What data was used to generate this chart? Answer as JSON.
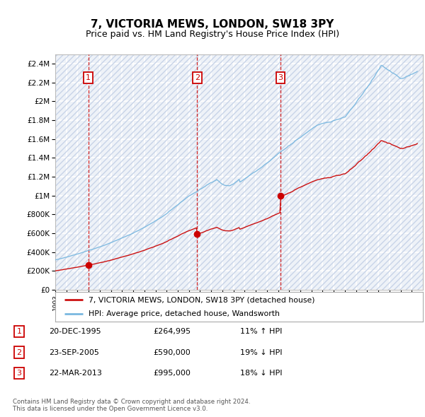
{
  "title": "7, VICTORIA MEWS, LONDON, SW18 3PY",
  "subtitle": "Price paid vs. HM Land Registry's House Price Index (HPI)",
  "ylim": [
    0,
    2500000
  ],
  "yticks": [
    0,
    200000,
    400000,
    600000,
    800000,
    1000000,
    1200000,
    1400000,
    1600000,
    1800000,
    2000000,
    2200000,
    2400000
  ],
  "xlim_start": 1993.0,
  "xlim_end": 2026.0,
  "sale_dates": [
    1995.97,
    2005.73,
    2013.22
  ],
  "sale_prices": [
    264995,
    590000,
    995000
  ],
  "sale_labels": [
    "1",
    "2",
    "3"
  ],
  "hpi_line_color": "#7ab8e0",
  "price_line_color": "#cc1111",
  "sale_marker_color": "#cc0000",
  "dashed_line_color": "#cc0000",
  "legend_label_price": "7, VICTORIA MEWS, LONDON, SW18 3PY (detached house)",
  "legend_label_hpi": "HPI: Average price, detached house, Wandsworth",
  "table_rows": [
    {
      "num": "1",
      "date": "20-DEC-1995",
      "price": "£264,995",
      "hpi": "11% ↑ HPI"
    },
    {
      "num": "2",
      "date": "23-SEP-2005",
      "price": "£590,000",
      "hpi": "19% ↓ HPI"
    },
    {
      "num": "3",
      "date": "22-MAR-2013",
      "price": "£995,000",
      "hpi": "18% ↓ HPI"
    }
  ],
  "footer": "Contains HM Land Registry data © Crown copyright and database right 2024.\nThis data is licensed under the Open Government Licence v3.0.",
  "bg_color": "#eef2f8",
  "hatch_color": "#c8d4e8",
  "grid_color": "#ffffff",
  "title_fontsize": 11,
  "subtitle_fontsize": 9
}
